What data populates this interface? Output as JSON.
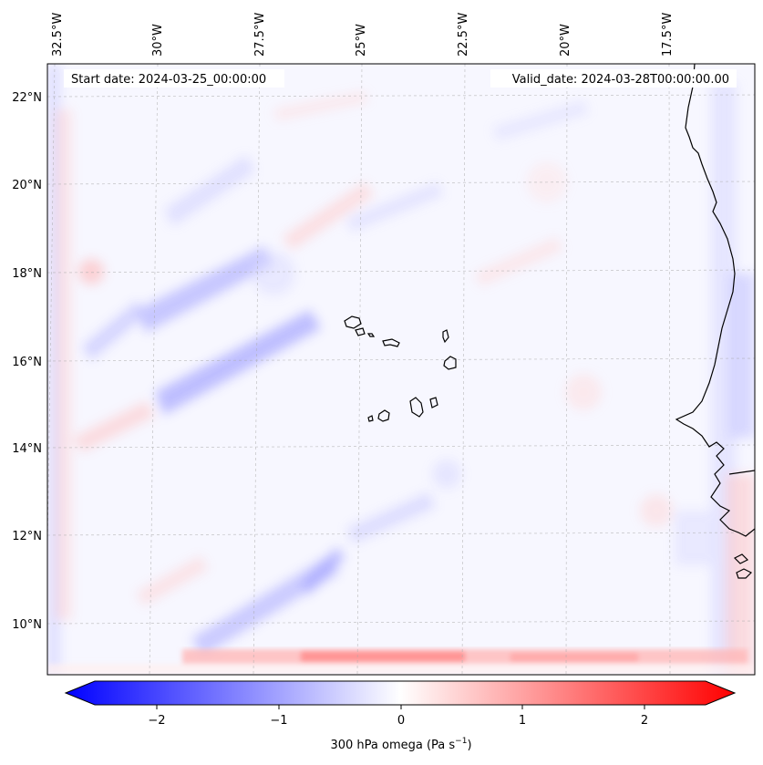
{
  "header": {
    "start_label": "Start date: 2024-03-25_00:00:00",
    "valid_label": "Valid_date: 2024-03-28T00:00:00.00"
  },
  "map": {
    "variable": "300 hPa omega",
    "lon_ticks": [
      "32.5°W",
      "30°W",
      "27.5°W",
      "25°W",
      "22.5°W",
      "20°W",
      "17.5°W"
    ],
    "lat_ticks": [
      "22°N",
      "20°N",
      "18°N",
      "16°N",
      "14°N",
      "12°N",
      "10°N"
    ],
    "colormap": [
      "#0000ff",
      "#ffffff",
      "#ff0000"
    ]
  },
  "colorbar": {
    "min": -2.5,
    "max": 2.5,
    "ticks": [
      "−2",
      "−1",
      "0",
      "1",
      "2"
    ],
    "label_main": "300 hPa omega (Pa s",
    "label_sup": "−1",
    "label_end": ")"
  }
}
